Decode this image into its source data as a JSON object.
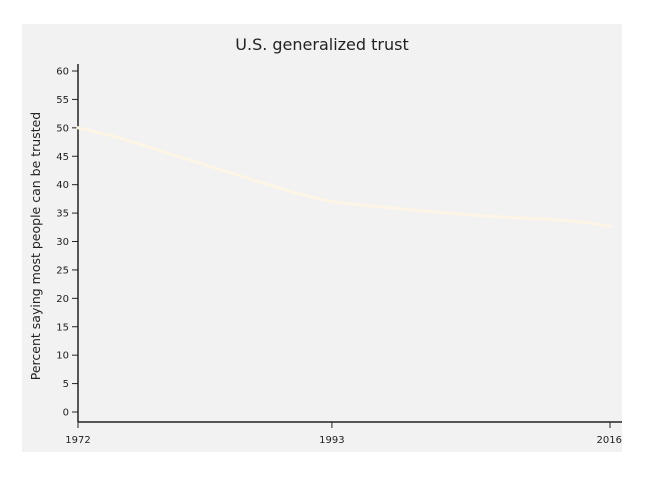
{
  "colors": {
    "panel_background": "#f2f2f2",
    "series_line": "#fdf5e6",
    "axis": "#222222"
  },
  "chart_data": {
    "type": "line",
    "title": "U.S. generalized trust",
    "xlabel": "",
    "ylabel": "Percent saying most people can be trusted",
    "x_ticks": [
      "1972",
      "1993",
      "2016"
    ],
    "y_ticks": [
      "0",
      "5",
      "10",
      "15",
      "20",
      "25",
      "30",
      "35",
      "40",
      "45",
      "50",
      "55",
      "60"
    ],
    "xlim": [
      1972,
      2016
    ],
    "ylim": [
      0,
      60
    ],
    "grid": false,
    "legend": "none",
    "series": [
      {
        "x": [
          1972,
          1975,
          1978,
          1981,
          1984,
          1987,
          1990,
          1993,
          1996,
          1999,
          2002,
          2005,
          2008,
          2011,
          2014,
          2016
        ],
        "y": [
          50,
          48.5,
          46.5,
          44.5,
          42.5,
          40.5,
          38.5,
          37,
          36.3,
          35.7,
          35.1,
          34.6,
          34.2,
          33.9,
          33.4,
          32.6
        ]
      }
    ]
  }
}
